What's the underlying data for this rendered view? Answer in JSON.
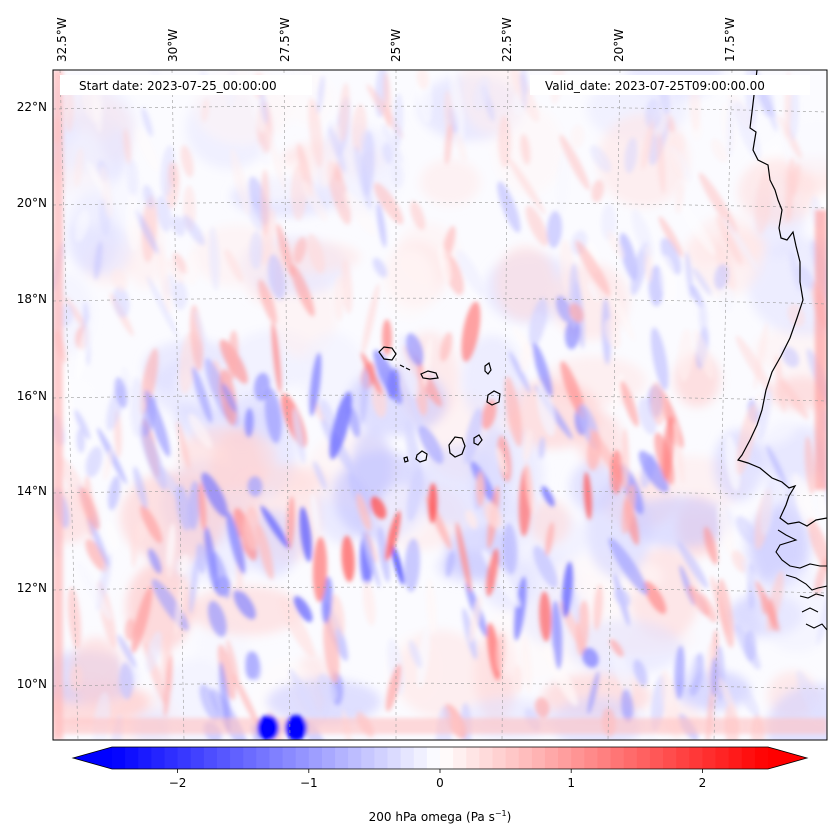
{
  "map": {
    "start_date_label": "Start date: 2023-07-25_00:00:00",
    "valid_date_label": "Valid_date: 2023-07-25T09:00:00.00",
    "lon_labels": [
      "32.5°W",
      "30°W",
      "27.5°W",
      "25°W",
      "22.5°W",
      "20°W",
      "17.5°W"
    ],
    "lat_labels": [
      "22°N",
      "20°N",
      "18°N",
      "16°N",
      "14°N",
      "12°N",
      "10°N"
    ],
    "extent": {
      "lon_min": -33.0,
      "lon_max": -15.5,
      "lat_min": 8.9,
      "lat_max": 22.7
    }
  },
  "colorbar": {
    "label": "200 hPa omega (Pa s",
    "label_sup": "−1",
    "label_end": ")",
    "ticks": [
      "−2",
      "−1",
      "0",
      "1",
      "2"
    ],
    "tick_values": [
      -2,
      -1,
      0,
      1,
      2
    ],
    "vmin": -2.5,
    "vmax": 2.5,
    "cmap": "bwr",
    "colors": {
      "neg": "#0000ff",
      "zero": "#ffffff",
      "pos": "#ff0000"
    }
  }
}
